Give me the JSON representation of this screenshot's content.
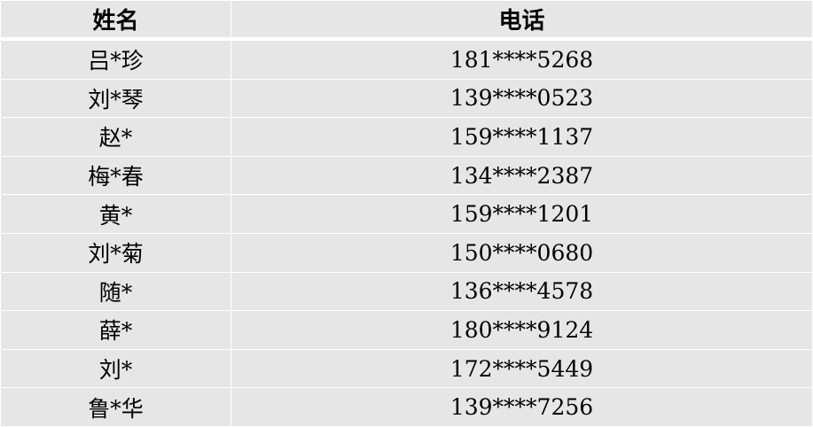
{
  "table": {
    "headers": [
      "姓名",
      "电话"
    ],
    "rows": [
      [
        "吕*珍",
        "181****5268"
      ],
      [
        "刘*琴",
        "139****0523"
      ],
      [
        "赵*",
        "159****1137"
      ],
      [
        "梅*春",
        "134****2387"
      ],
      [
        "黄*",
        "159****1201"
      ],
      [
        "刘*菊",
        "150****0680"
      ],
      [
        "随*",
        "136****4578"
      ],
      [
        "薛*",
        "180****9124"
      ],
      [
        "刘*",
        "172****5449"
      ],
      [
        "鲁*华",
        "139****7256"
      ]
    ]
  }
}
